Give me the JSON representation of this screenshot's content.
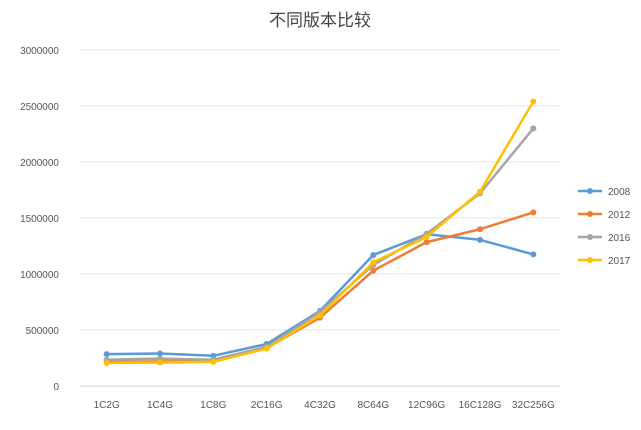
{
  "chart_data": {
    "type": "line",
    "title": "不同版本比较",
    "xlabel": "",
    "ylabel": "",
    "categories": [
      "1C2G",
      "1C4G",
      "1C8G",
      "2C16G",
      "4C32G",
      "8C64G",
      "12C96G",
      "16C128G",
      "32C256G"
    ],
    "ylim": [
      0,
      3000000
    ],
    "yticks": [
      0,
      500000,
      1000000,
      1500000,
      2000000,
      2500000,
      3000000
    ],
    "ytick_labels": [
      "0",
      "500000",
      "1000000",
      "1500000",
      "2000000",
      "2500000",
      "3000000"
    ],
    "grid": "horizontal",
    "legend_position": "right",
    "series": [
      {
        "name": "2008",
        "color": "#5B9BD5",
        "values": [
          285000,
          290000,
          270000,
          375000,
          670000,
          1170000,
          1355000,
          1305000,
          1175000
        ]
      },
      {
        "name": "2012",
        "color": "#ED7D31",
        "values": [
          215000,
          220000,
          220000,
          340000,
          610000,
          1030000,
          1285000,
          1400000,
          1550000
        ]
      },
      {
        "name": "2016",
        "color": "#A5A5A5",
        "values": [
          235000,
          245000,
          235000,
          350000,
          660000,
          1080000,
          1360000,
          1720000,
          2300000
        ]
      },
      {
        "name": "2017",
        "color": "#FFC000",
        "values": [
          205000,
          210000,
          215000,
          335000,
          630000,
          1105000,
          1330000,
          1735000,
          2540000
        ]
      }
    ]
  }
}
